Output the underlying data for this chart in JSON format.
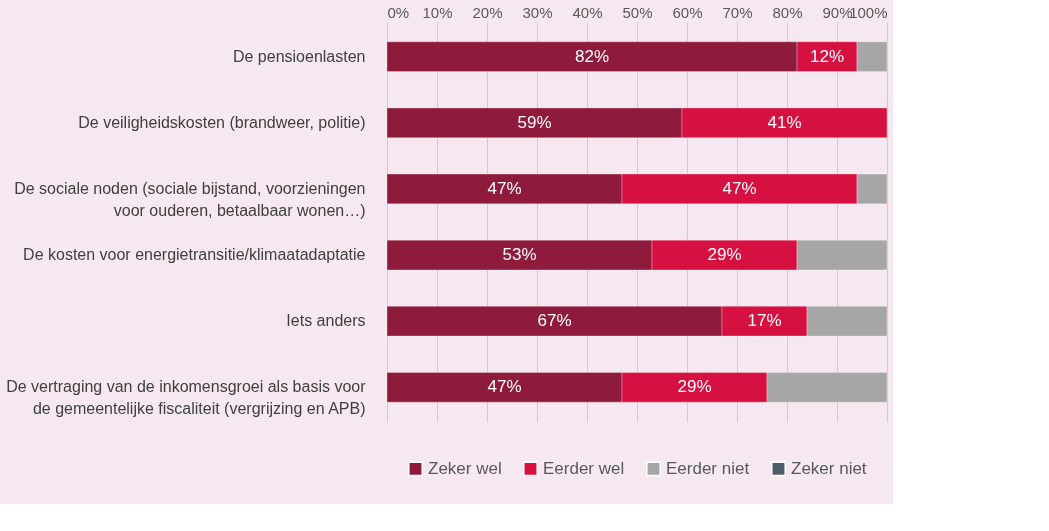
{
  "chart_data": {
    "type": "bar",
    "orientation": "horizontal",
    "stacked": true,
    "categories": [
      "De pensioenlasten",
      "De veiligheidskosten (brandweer, politie)",
      "De sociale noden (sociale bijstand, voorzieningen voor ouderen, betaalbaar wonen…)",
      "De kosten voor energietransitie/klimaatadaptatie",
      "Iets anders",
      "De vertraging van de inkomensgroei als basis voor de gemeentelijke fiscaliteit (vergrijzing en APB)"
    ],
    "series": [
      {
        "name": "Zeker wel",
        "color": "#8e1a3c",
        "values": [
          82,
          59,
          47,
          53,
          67,
          47
        ],
        "value_labels": [
          "82%",
          "59%",
          "47%",
          "53%",
          "67%",
          "47%"
        ]
      },
      {
        "name": "Eerder wel",
        "color": "#d61040",
        "values": [
          12,
          41,
          47,
          29,
          17,
          29
        ],
        "value_labels": [
          "12%",
          "41%",
          "47%",
          "29%",
          "17%",
          "29%"
        ]
      },
      {
        "name": "Eerder niet",
        "color": "#a6a6a6",
        "values": [
          6,
          null,
          6,
          18,
          16,
          24
        ]
      },
      {
        "name": "Zeker niet",
        "color": "#4d5d6b",
        "values": [
          null,
          null,
          null,
          null,
          null,
          null
        ]
      }
    ],
    "xlim": [
      0,
      100
    ],
    "xticks": [
      {
        "value": 0,
        "label": "0%"
      },
      {
        "value": 10,
        "label": "10%"
      },
      {
        "value": 20,
        "label": "20%"
      },
      {
        "value": 30,
        "label": "30%"
      },
      {
        "value": 40,
        "label": "40%"
      },
      {
        "value": 50,
        "label": "50%"
      },
      {
        "value": 60,
        "label": "60%"
      },
      {
        "value": 70,
        "label": "70%"
      },
      {
        "value": 80,
        "label": "80%"
      },
      {
        "value": 90,
        "label": "90%"
      },
      {
        "value": 100,
        "label": "100%"
      }
    ],
    "grid": "x",
    "legend": "bottom"
  }
}
